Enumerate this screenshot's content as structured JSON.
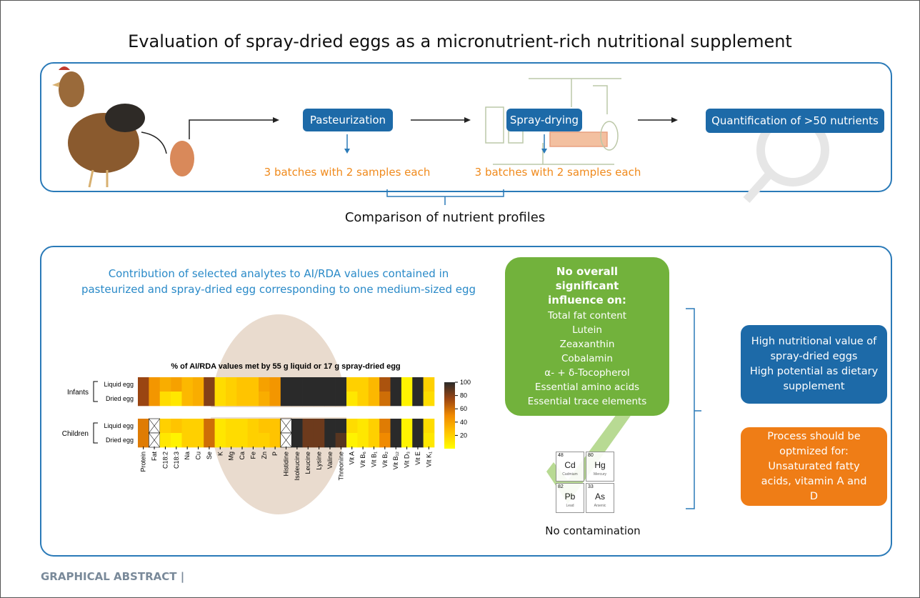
{
  "title": "Evaluation of spray-dried eggs as a micronutrient-rich nutritional supplement",
  "process": {
    "steps": [
      "Pasteurization",
      "Spray-drying",
      "Quantification of >50 nutrients"
    ],
    "batch_notes": [
      "3 batches with 2 samples each",
      "3 batches with 2 samples each"
    ],
    "comparison": "Comparison of nutrient profiles"
  },
  "caption": [
    "Contribution of selected analytes to AI/RDA values contained in",
    "pasteurized and spray-dried egg corresponding to one medium-sized egg"
  ],
  "chart_data": {
    "type": "heatmap",
    "title": "% of AI/RDA values met by 55 g liquid or 17 g spray-dried egg",
    "categories": [
      "Protein",
      "Fat",
      "C18:2",
      "C18:3",
      "Na",
      "Cu",
      "Se",
      "K",
      "Mg",
      "Ca",
      "Fe",
      "Zn",
      "P",
      "Histidine",
      "Isoleucine",
      "Leucine",
      "Lysine",
      "Valine",
      "Threonine",
      "Vit A",
      "Vit B₆",
      "Vit B₁",
      "Vit B₂",
      "Vit B₁₂",
      "Vit D₃",
      "Vit E",
      "Vit K₁"
    ],
    "groups": [
      {
        "name": "Infants",
        "rows": [
          {
            "name": "Liquid egg",
            "values": [
              75,
              45,
              35,
              40,
              30,
              35,
              80,
              15,
              20,
              25,
              25,
              40,
              45,
              100,
              100,
              100,
              100,
              100,
              100,
              20,
              20,
              30,
              70,
              100,
              5,
              100,
              20
            ]
          },
          {
            "name": "Dried egg",
            "values": [
              75,
              45,
              15,
              10,
              30,
              35,
              80,
              15,
              20,
              25,
              25,
              35,
              45,
              100,
              100,
              100,
              100,
              100,
              100,
              10,
              20,
              30,
              60,
              100,
              5,
              100,
              15
            ]
          }
        ]
      },
      {
        "name": "Children",
        "rows": [
          {
            "name": "Liquid egg",
            "values": [
              55,
              null,
              20,
              25,
              20,
              20,
              60,
              10,
              15,
              15,
              20,
              25,
              25,
              null,
              100,
              85,
              85,
              100,
              100,
              15,
              10,
              20,
              55,
              100,
              5,
              100,
              15
            ]
          },
          {
            "name": "Dried egg",
            "values": [
              55,
              null,
              10,
              5,
              20,
              20,
              60,
              10,
              15,
              15,
              20,
              20,
              25,
              null,
              100,
              85,
              85,
              100,
              90,
              5,
              10,
              20,
              50,
              100,
              5,
              100,
              10
            ]
          }
        ]
      }
    ],
    "clim": [
      0,
      100
    ],
    "cticks": [
      20,
      40,
      60,
      80,
      100
    ],
    "colorscale": [
      "#ffff00",
      "#ffc400",
      "#f08a00",
      "#9a4512",
      "#2a2a2a"
    ]
  },
  "findings": {
    "no_influence": {
      "heading": "No overall significant influence on:",
      "items": [
        "Total fat content",
        "Lutein",
        "Zeaxanthin",
        "Cobalamin",
        "α- + δ-Tocopherol",
        "Essential amino acids",
        "Essential trace elements"
      ]
    },
    "contamination": {
      "elements": [
        {
          "number": 48,
          "symbol": "Cd",
          "name": "Cadmium"
        },
        {
          "number": 80,
          "symbol": "Hg",
          "name": "Mercury"
        },
        {
          "number": 82,
          "symbol": "Pb",
          "name": "Lead"
        },
        {
          "number": 33,
          "symbol": "As",
          "name": "Arsenic"
        }
      ],
      "label": "No contamination"
    },
    "conclusions": {
      "positive": [
        "High nutritional value of spray-dried eggs",
        "High potential as dietary supplement"
      ],
      "optimize": "Process should be optmized for: Unsaturated fatty acids, vitamin A and D"
    }
  },
  "footer": "GRAPHICAL ABSTRACT |"
}
